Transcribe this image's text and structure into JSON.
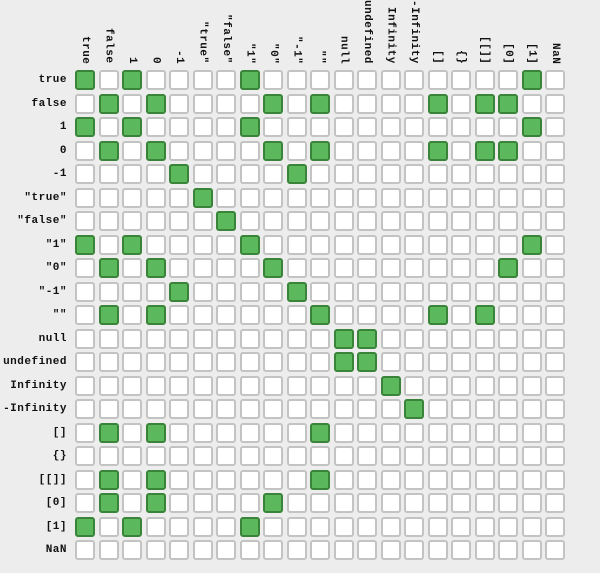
{
  "colors": {
    "background": "#ededed",
    "cell_fill": "#ffffff",
    "cell_border": "#c3c3c3",
    "equal_fill": "#5cb85c",
    "equal_border": "#398439",
    "label_text": "#111111"
  },
  "chart_data": {
    "type": "heatmap",
    "labels": [
      "true",
      "false",
      "1",
      "0",
      "-1",
      "\"true\"",
      "\"false\"",
      "\"1\"",
      "\"0\"",
      "\"-1\"",
      "\"\"",
      "null",
      "undefined",
      "Infinity",
      "-Infinity",
      "[]",
      "{}",
      "[[]]",
      "[0]",
      "[1]",
      "NaN"
    ],
    "x_labels": [
      "true",
      "false",
      "1",
      "0",
      "-1",
      "\"true\"",
      "\"false\"",
      "\"1\"",
      "\"0\"",
      "\"-1\"",
      "\"\"",
      "null",
      "undefined",
      "Infinity",
      "-Infinity",
      "[]",
      "{}",
      "[[]]",
      "[0]",
      "[1]",
      "NaN"
    ],
    "y_labels": [
      "true",
      "false",
      "1",
      "0",
      "-1",
      "\"true\"",
      "\"false\"",
      "\"1\"",
      "\"0\"",
      "\"-1\"",
      "\"\"",
      "null",
      "undefined",
      "Infinity",
      "-Infinity",
      "[]",
      "{}",
      "[[]]",
      "[0]",
      "[1]",
      "NaN"
    ],
    "green_cells": [
      [
        0,
        2,
        7,
        19
      ],
      [
        1,
        3,
        8,
        10,
        15,
        17,
        18
      ],
      [
        0,
        2,
        7,
        19
      ],
      [
        1,
        3,
        8,
        10,
        15,
        17,
        18
      ],
      [
        4,
        9
      ],
      [
        5
      ],
      [
        6
      ],
      [
        0,
        2,
        7,
        19
      ],
      [
        1,
        3,
        8,
        18
      ],
      [
        4,
        9
      ],
      [
        1,
        3,
        10,
        15,
        17
      ],
      [
        11,
        12
      ],
      [
        11,
        12
      ],
      [
        13
      ],
      [
        14
      ],
      [
        1,
        3,
        10
      ],
      [],
      [
        1,
        3,
        10
      ],
      [
        1,
        3,
        8
      ],
      [
        0,
        2,
        7
      ],
      []
    ]
  }
}
